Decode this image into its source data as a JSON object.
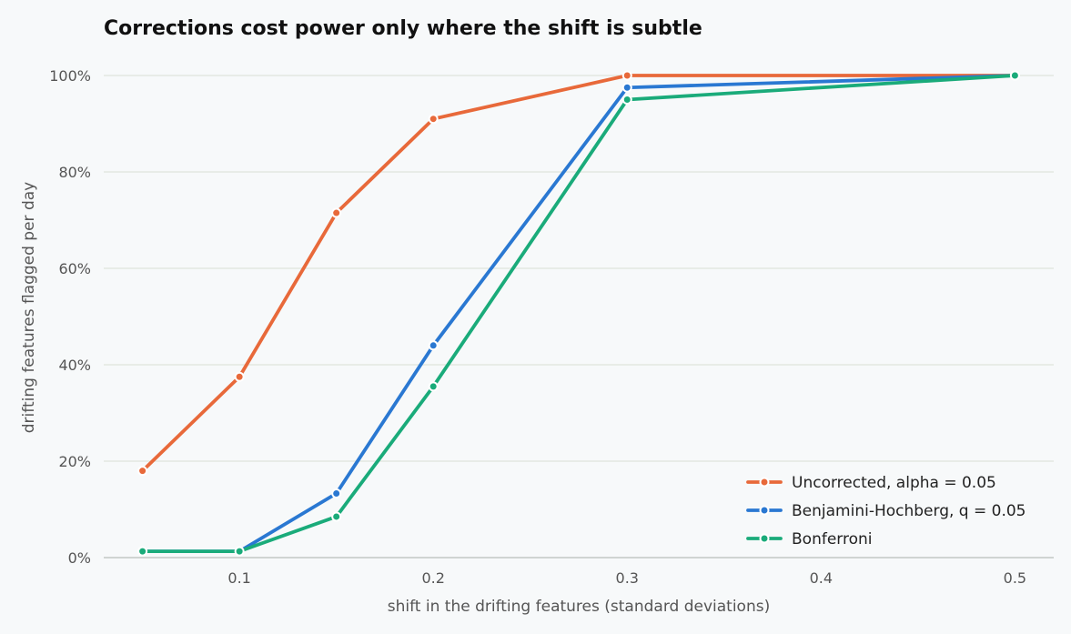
{
  "chart_data": {
    "type": "line",
    "title": "Corrections cost power only where the shift is subtle",
    "xlabel": "shift in the drifting features (standard deviations)",
    "ylabel": "drifting features flagged per day",
    "x": [
      0.05,
      0.1,
      0.15,
      0.2,
      0.3,
      0.5
    ],
    "xlim": [
      0.03,
      0.52
    ],
    "ylim": [
      0,
      100
    ],
    "x_ticks": [
      0.1,
      0.2,
      0.3,
      0.4,
      0.5
    ],
    "x_tick_labels": [
      "0.1",
      "0.2",
      "0.3",
      "0.4",
      "0.5"
    ],
    "y_ticks": [
      0,
      20,
      40,
      60,
      80,
      100
    ],
    "y_tick_labels": [
      "0%",
      "20%",
      "40%",
      "60%",
      "80%",
      "100%"
    ],
    "grid": "horizontal",
    "legend_position": "bottom-right",
    "series": [
      {
        "name": "Uncorrected, alpha = 0.05",
        "color": "#e8693a",
        "values": [
          18,
          37.5,
          71.5,
          91,
          100,
          100
        ]
      },
      {
        "name": "Benjamini-Hochberg, q = 0.05",
        "color": "#2a78d2",
        "values": [
          1.3,
          1.3,
          13.3,
          44,
          97.5,
          100
        ]
      },
      {
        "name": "Bonferroni",
        "color": "#1aab7a",
        "values": [
          1.3,
          1.3,
          8.5,
          35.5,
          95,
          100
        ]
      }
    ]
  }
}
